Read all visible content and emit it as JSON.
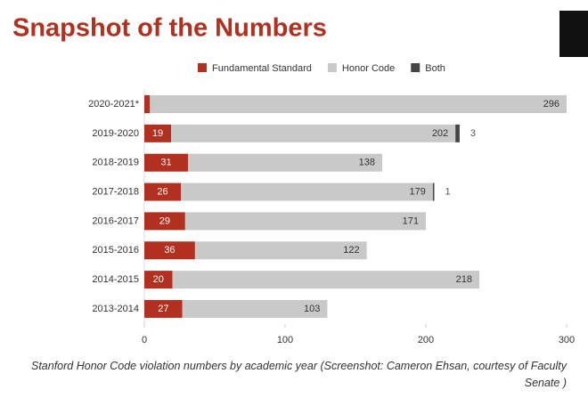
{
  "chart_data": {
    "type": "stacked-barh",
    "title": "Snapshot of the Numbers",
    "caption": "Stanford Honor Code violation numbers by academic year (Screenshot: Cameron Ehsan, courtesy of Faculty Senate )",
    "categories": [
      "2020-2021*",
      "2019-2020",
      "2018-2019",
      "2017-2018",
      "2016-2017",
      "2015-2016",
      "2014-2015",
      "2013-2014"
    ],
    "series": [
      {
        "name": "Fundamental Standard",
        "color": "#b1301f",
        "values": [
          4,
          19,
          31,
          26,
          29,
          36,
          20,
          27
        ]
      },
      {
        "name": "Honor Code",
        "color": "#c9c9c9",
        "values": [
          296,
          202,
          138,
          179,
          171,
          122,
          218,
          103
        ]
      },
      {
        "name": "Both",
        "color": "#454545",
        "values": [
          0,
          3,
          0,
          1,
          0,
          0,
          0,
          0
        ]
      }
    ],
    "xlim": [
      0,
      300
    ],
    "xticks": [
      0,
      100,
      200,
      300
    ]
  }
}
